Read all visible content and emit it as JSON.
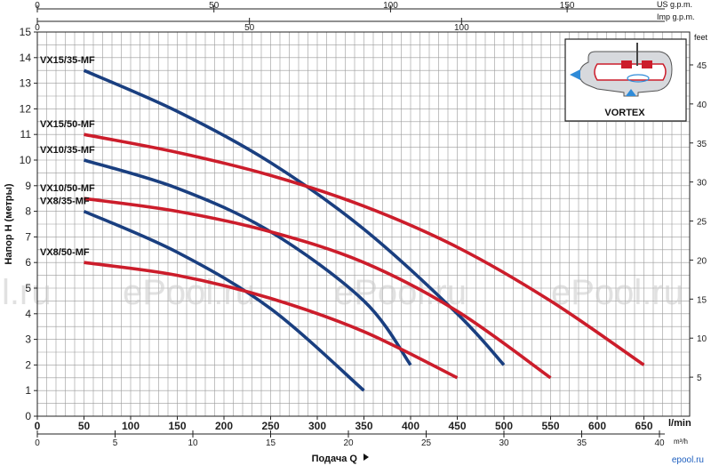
{
  "chart_data": {
    "type": "line",
    "ylabel": "Напор H (метры)",
    "xlabel": "Подача Q",
    "x_unit_lmin": "l/min",
    "x_unit_m3h": "m³/h",
    "right_unit": "feet",
    "top_unit_us": "US g.p.m.",
    "top_unit_imp": "Imp g.p.m.",
    "inset_title": "VORTEX",
    "watermarks": [
      "l.ru",
      "ePool.ru",
      "ePool.ru",
      "ePool.ru"
    ],
    "corner_logo": "epool.ru",
    "xlim": [
      0,
      700
    ],
    "ylim": [
      0,
      15
    ],
    "x_ticks_lmin": [
      0,
      50,
      100,
      150,
      200,
      250,
      300,
      350,
      400,
      450,
      500,
      550,
      600,
      650
    ],
    "x_ticks_m3h": [
      0,
      5,
      10,
      15,
      20,
      25,
      30,
      35,
      40
    ],
    "x_ticks_us": [
      0,
      50,
      100,
      150
    ],
    "x_ticks_imp": [
      0,
      50,
      100
    ],
    "y_ticks_m": [
      0,
      1,
      2,
      3,
      4,
      5,
      6,
      7,
      8,
      9,
      10,
      11,
      12,
      13,
      14,
      15
    ],
    "y_ticks_feet": [
      5,
      10,
      15,
      20,
      25,
      30,
      35,
      40,
      45
    ],
    "grid": true,
    "colors": {
      "blue": "#1a3f80",
      "red": "#cc1d2b"
    },
    "series": [
      {
        "name": "VX15/35-MF",
        "color": "blue",
        "x": [
          50,
          150,
          250,
          350,
          450,
          500
        ],
        "y": [
          13.5,
          11.9,
          9.9,
          7.3,
          4.0,
          2.0
        ]
      },
      {
        "name": "VX15/50-MF",
        "color": "red",
        "x": [
          50,
          150,
          250,
          350,
          450,
          550,
          650
        ],
        "y": [
          11.0,
          10.3,
          9.4,
          8.2,
          6.6,
          4.5,
          2.0
        ]
      },
      {
        "name": "VX10/35-MF",
        "color": "blue",
        "x": [
          50,
          150,
          250,
          350,
          400
        ],
        "y": [
          10.0,
          8.9,
          7.2,
          4.5,
          2.0
        ]
      },
      {
        "name": "VX10/50-MF",
        "color": "red",
        "x": [
          50,
          150,
          250,
          350,
          450,
          550
        ],
        "y": [
          8.5,
          8.0,
          7.2,
          6.0,
          4.1,
          1.5
        ]
      },
      {
        "name": "VX8/35-MF",
        "color": "blue",
        "x": [
          50,
          150,
          250,
          350
        ],
        "y": [
          8.0,
          6.4,
          4.2,
          1.0
        ]
      },
      {
        "name": "VX8/50-MF",
        "color": "red",
        "x": [
          50,
          150,
          250,
          350,
          450
        ],
        "y": [
          6.0,
          5.5,
          4.6,
          3.3,
          1.5
        ]
      }
    ]
  }
}
